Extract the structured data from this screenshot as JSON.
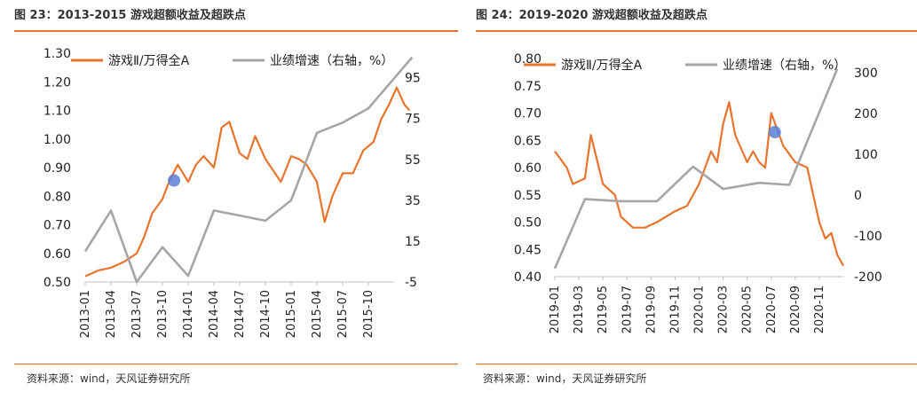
{
  "figures": [
    {
      "title": "图 23：2013-2015 游戏超额收益及超跌点",
      "source": "资料来源：wind，天风证券研究所"
    },
    {
      "title": "图 24：2019-2020 游戏超额收益及超跌点",
      "source": "资料来源：wind，天风证券研究所"
    }
  ],
  "colors": {
    "orange": "#e8742d",
    "gray": "#a6a6a6",
    "marker": "#5b7fd6",
    "rule": "#e8742d"
  },
  "chart_data": [
    {
      "type": "line",
      "legend": [
        "游戏Ⅱ/万得全A",
        "业绩增速（右轴，%）"
      ],
      "legend_placement": "top",
      "x_ticks": [
        "2013-01",
        "2013-04",
        "2013-07",
        "2013-10",
        "2014-01",
        "2014-04",
        "2014-07",
        "2014-10",
        "2015-01",
        "2015-04",
        "2015-07",
        "2015-10"
      ],
      "x_range": [
        0,
        12
      ],
      "y_left": {
        "ticks": [
          "0.50",
          "0.60",
          "0.70",
          "0.80",
          "0.90",
          "1.00",
          "1.10",
          "1.20",
          "1.30"
        ],
        "range": [
          0.5,
          1.3
        ]
      },
      "y_right": {
        "ticks": [
          "-5",
          "15",
          "35",
          "55",
          "75",
          "95"
        ],
        "range": [
          -5,
          107
        ]
      },
      "series": [
        {
          "name": "游戏Ⅱ/万得全A",
          "axis": "left",
          "points": [
            [
              0,
              0.52
            ],
            [
              0.5,
              0.54
            ],
            [
              1,
              0.55
            ],
            [
              1.5,
              0.57
            ],
            [
              2,
              0.6
            ],
            [
              2.3,
              0.66
            ],
            [
              2.6,
              0.74
            ],
            [
              3,
              0.79
            ],
            [
              3.3,
              0.86
            ],
            [
              3.6,
              0.91
            ],
            [
              4,
              0.85
            ],
            [
              4.3,
              0.91
            ],
            [
              4.6,
              0.94
            ],
            [
              5,
              0.9
            ],
            [
              5.3,
              1.04
            ],
            [
              5.6,
              1.06
            ],
            [
              6,
              0.95
            ],
            [
              6.3,
              0.93
            ],
            [
              6.6,
              1.01
            ],
            [
              7,
              0.93
            ],
            [
              7.3,
              0.89
            ],
            [
              7.6,
              0.85
            ],
            [
              8,
              0.94
            ],
            [
              8.3,
              0.93
            ],
            [
              8.6,
              0.91
            ],
            [
              9,
              0.85
            ],
            [
              9.3,
              0.71
            ],
            [
              9.6,
              0.8
            ],
            [
              10,
              0.88
            ],
            [
              10.4,
              0.88
            ],
            [
              10.8,
              0.96
            ],
            [
              11.2,
              0.99
            ],
            [
              11.5,
              1.07
            ],
            [
              11.8,
              1.12
            ],
            [
              12.1,
              1.18
            ],
            [
              12.4,
              1.12
            ],
            [
              12.6,
              1.1
            ]
          ]
        },
        {
          "name": "业绩增速（右轴，%）",
          "axis": "right",
          "points": [
            [
              0,
              10
            ],
            [
              1,
              30
            ],
            [
              2,
              -5
            ],
            [
              3,
              12
            ],
            [
              4,
              -2
            ],
            [
              5,
              30
            ],
            [
              7,
              25
            ],
            [
              8,
              35
            ],
            [
              9,
              68
            ],
            [
              10,
              73
            ],
            [
              11,
              80
            ],
            [
              12.7,
              105
            ]
          ]
        }
      ],
      "marker": {
        "x": 3.45,
        "y": 0.855
      }
    },
    {
      "type": "line",
      "legend": [
        "游戏Ⅱ/万得全A",
        "业绩增速（右轴，%）"
      ],
      "legend_placement": "top",
      "x_ticks": [
        "2019-01",
        "2019-03",
        "2019-05",
        "2019-07",
        "2019-09",
        "2019-11",
        "2020-01",
        "2020-03",
        "2020-05",
        "2020-07",
        "2020-09",
        "2020-11"
      ],
      "x_range": [
        0,
        24
      ],
      "y_left": {
        "ticks": [
          "0.40",
          "0.45",
          "0.50",
          "0.55",
          "0.60",
          "0.65",
          "0.70",
          "0.75",
          "0.80"
        ],
        "range": [
          0.4,
          0.8
        ]
      },
      "y_right": {
        "ticks": [
          "-200",
          "-100",
          "0",
          "100",
          "200",
          "300"
        ],
        "range": [
          -200,
          335
        ]
      },
      "series": [
        {
          "name": "游戏Ⅱ/万得全A",
          "axis": "left",
          "points": [
            [
              0,
              0.63
            ],
            [
              1,
              0.6
            ],
            [
              1.5,
              0.57
            ],
            [
              2.5,
              0.58
            ],
            [
              3,
              0.66
            ],
            [
              4,
              0.57
            ],
            [
              5,
              0.55
            ],
            [
              5.5,
              0.51
            ],
            [
              6.5,
              0.49
            ],
            [
              7.5,
              0.49
            ],
            [
              8.5,
              0.5
            ],
            [
              10,
              0.52
            ],
            [
              11,
              0.53
            ],
            [
              12,
              0.57
            ],
            [
              12.5,
              0.6
            ],
            [
              13,
              0.63
            ],
            [
              13.5,
              0.61
            ],
            [
              14,
              0.68
            ],
            [
              14.5,
              0.72
            ],
            [
              15,
              0.66
            ],
            [
              16,
              0.61
            ],
            [
              16.5,
              0.63
            ],
            [
              17,
              0.61
            ],
            [
              17.5,
              0.6
            ],
            [
              18,
              0.7
            ],
            [
              18.5,
              0.67
            ],
            [
              19,
              0.64
            ],
            [
              20,
              0.61
            ],
            [
              21,
              0.6
            ],
            [
              21.5,
              0.55
            ],
            [
              22,
              0.5
            ],
            [
              22.5,
              0.47
            ],
            [
              23,
              0.48
            ],
            [
              23.5,
              0.44
            ],
            [
              24,
              0.42
            ]
          ]
        },
        {
          "name": "业绩增速（右轴，%）",
          "axis": "right",
          "points": [
            [
              0,
              -180
            ],
            [
              2.5,
              -10
            ],
            [
              5.5,
              -15
            ],
            [
              8.5,
              -15
            ],
            [
              11.5,
              70
            ],
            [
              14,
              15
            ],
            [
              17,
              30
            ],
            [
              19.5,
              25
            ],
            [
              23.5,
              310
            ]
          ]
        }
      ],
      "marker": {
        "x": 18.3,
        "y": 0.665
      }
    }
  ]
}
